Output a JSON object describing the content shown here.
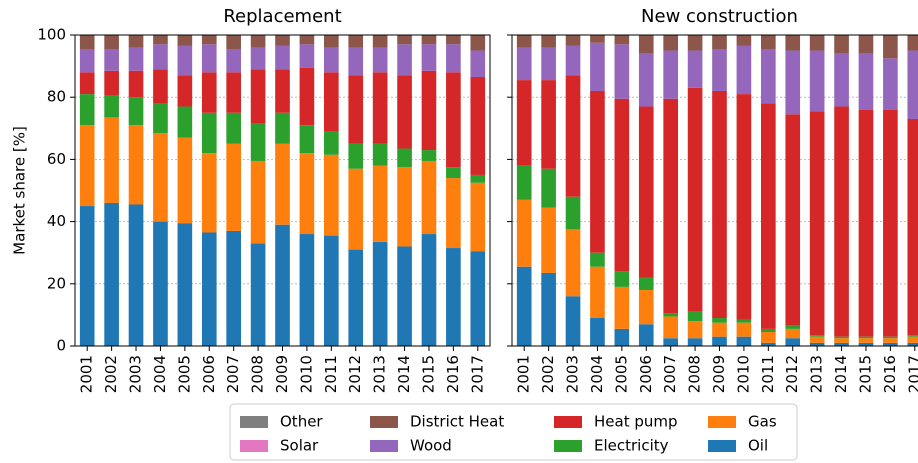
{
  "chart_data": [
    {
      "type": "bar",
      "stacked": true,
      "title": "Replacement",
      "ylabel": "Market share [%]",
      "categories": [
        "2001",
        "2002",
        "2003",
        "2004",
        "2005",
        "2006",
        "2007",
        "2008",
        "2009",
        "2010",
        "2011",
        "2012",
        "2013",
        "2014",
        "2015",
        "2016",
        "2017"
      ],
      "series": [
        {
          "name": "Oil",
          "color": "#1f77b4",
          "values": [
            45,
            46,
            45.5,
            40,
            39.5,
            36.5,
            37,
            33,
            39,
            36,
            35.5,
            31,
            33.5,
            32,
            36,
            31.5,
            30.5
          ]
        },
        {
          "name": "Gas",
          "color": "#ff7f0e",
          "values": [
            26,
            27.5,
            25.5,
            28.5,
            27.5,
            25.5,
            28,
            26.5,
            26,
            26,
            26,
            26,
            24.5,
            25.5,
            23.5,
            22.5,
            22
          ]
        },
        {
          "name": "Electricity",
          "color": "#2ca02c",
          "values": [
            10,
            7,
            9,
            9.5,
            10,
            13,
            10,
            12,
            10,
            9,
            7.5,
            8,
            7,
            6,
            3.5,
            3.5,
            2.5
          ]
        },
        {
          "name": "Heat pump",
          "color": "#d62728",
          "values": [
            7,
            8,
            8.5,
            11,
            10,
            13,
            13,
            17.5,
            14,
            18.5,
            19,
            22,
            23,
            23.5,
            25.5,
            30.5,
            31.5
          ]
        },
        {
          "name": "Wood",
          "color": "#9467bd",
          "values": [
            7.5,
            7,
            7.5,
            8,
            9.5,
            9,
            7.5,
            7,
            7.5,
            7.5,
            8,
            9,
            8,
            10,
            8.5,
            9,
            8.5
          ]
        },
        {
          "name": "District Heat",
          "color": "#8c564b",
          "values": [
            4.5,
            4.5,
            4,
            3,
            3.5,
            3,
            4.5,
            4,
            3.5,
            3,
            4,
            4,
            4,
            3,
            3,
            3,
            5
          ]
        },
        {
          "name": "Solar",
          "color": "#e377c2",
          "values": [
            0,
            0,
            0,
            0,
            0,
            0,
            0,
            0,
            0,
            0,
            0,
            0,
            0,
            0,
            0,
            0,
            0
          ]
        },
        {
          "name": "Other",
          "color": "#7f7f7f",
          "values": [
            0,
            0,
            0,
            0,
            0,
            0,
            0,
            0,
            0,
            0,
            0,
            0,
            0,
            0,
            0,
            0,
            0
          ]
        }
      ],
      "ylim": [
        0,
        100
      ],
      "yticks": [
        0,
        20,
        40,
        60,
        80,
        100
      ],
      "grid": true
    },
    {
      "type": "bar",
      "stacked": true,
      "title": "New construction",
      "categories": [
        "2001",
        "2002",
        "2003",
        "2004",
        "2005",
        "2006",
        "2007",
        "2008",
        "2009",
        "2010",
        "2011",
        "2012",
        "2013",
        "2014",
        "2015",
        "2016",
        "2017"
      ],
      "series": [
        {
          "name": "Oil",
          "color": "#1f77b4",
          "values": [
            25.5,
            23.5,
            16,
            9,
            5.5,
            7,
            2.5,
            2.5,
            3,
            3,
            1,
            2.5,
            1,
            1,
            1,
            1,
            1
          ]
        },
        {
          "name": "Gas",
          "color": "#ff7f0e",
          "values": [
            21.5,
            21,
            21.5,
            16.5,
            13.5,
            11,
            7,
            5.5,
            4.5,
            4.5,
            3.5,
            3,
            2,
            1.5,
            1.5,
            1.5,
            2
          ]
        },
        {
          "name": "Electricity",
          "color": "#2ca02c",
          "values": [
            11,
            12.5,
            10.5,
            4.5,
            5,
            4,
            1,
            3,
            1.5,
            1,
            1,
            1,
            0.5,
            0.5,
            0.5,
            0.5,
            0.5
          ]
        },
        {
          "name": "Heat pump",
          "color": "#d62728",
          "values": [
            27.5,
            28.5,
            39,
            52,
            55.5,
            55,
            69,
            72,
            73,
            72.5,
            72.5,
            68,
            72,
            74,
            73,
            73,
            69.5
          ]
        },
        {
          "name": "Wood",
          "color": "#9467bd",
          "values": [
            10.5,
            10.5,
            9.5,
            15.5,
            17.5,
            17,
            15.5,
            12,
            13.5,
            15.5,
            17.5,
            20.5,
            19.5,
            17,
            18,
            16.5,
            22
          ]
        },
        {
          "name": "District Heat",
          "color": "#8c564b",
          "values": [
            4,
            4,
            3.5,
            2.5,
            3,
            6,
            5,
            5,
            4.5,
            3.5,
            4.5,
            5,
            5,
            6,
            6,
            7.5,
            5
          ]
        },
        {
          "name": "Solar",
          "color": "#e377c2",
          "values": [
            0,
            0,
            0,
            0,
            0,
            0,
            0,
            0,
            0,
            0,
            0,
            0,
            0,
            0,
            0,
            0,
            0
          ]
        },
        {
          "name": "Other",
          "color": "#7f7f7f",
          "values": [
            0,
            0,
            0,
            0,
            0,
            0,
            0,
            0,
            0,
            0,
            0,
            0,
            0,
            0,
            0,
            0,
            0
          ]
        }
      ],
      "ylim": [
        0,
        100
      ],
      "yticks": [
        0,
        20,
        40,
        60,
        80,
        100
      ],
      "grid": true
    }
  ]
}
